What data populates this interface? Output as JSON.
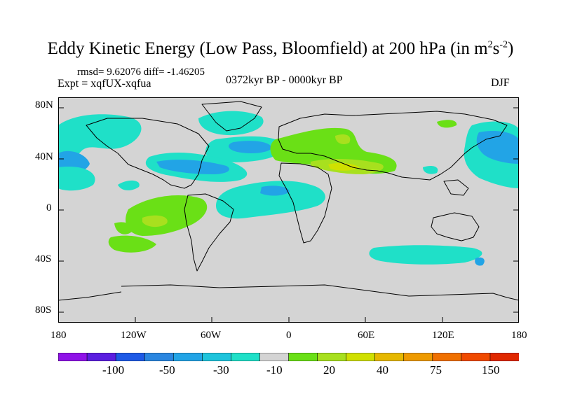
{
  "title": {
    "text": "Eddy Kinetic Energy (Low Pass, Bloomfield) at 200 hPa (in m",
    "sup1": "2",
    "mid": "s",
    "sup2": "-2",
    "end": ")"
  },
  "stats": {
    "rmsd": "rmsd= 9.62076 diff= -1.46205"
  },
  "expt": "Expt = xqfUX-xqfua",
  "period": "0372kyr BP - 0000kyr BP",
  "season": "DJF",
  "lat_labels": [
    "80N",
    "40N",
    "0",
    "40S",
    "80S"
  ],
  "lon_labels": [
    "180",
    "120W",
    "60W",
    "0",
    "60E",
    "120E",
    "180"
  ],
  "colorbar": {
    "colors": [
      "#8f12e8",
      "#5b1ee0",
      "#1e5ae6",
      "#2a86e0",
      "#22a4e6",
      "#1ec4dc",
      "#1fe0c8",
      "#d4d4d4",
      "#6ae016",
      "#a8e01e",
      "#d0e000",
      "#e6b800",
      "#ee9a00",
      "#f07000",
      "#f04a00",
      "#e02800"
    ],
    "labels": [
      "-100",
      "-50",
      "-30",
      "-10",
      "20",
      "40",
      "75",
      "150"
    ]
  },
  "map_colors": {
    "ocean": "#d4d4d4",
    "cyan": "#1fe0c8",
    "sky": "#22a4e6",
    "green": "#6ae016",
    "lime": "#a8e01e",
    "yellow": "#d0e000"
  }
}
